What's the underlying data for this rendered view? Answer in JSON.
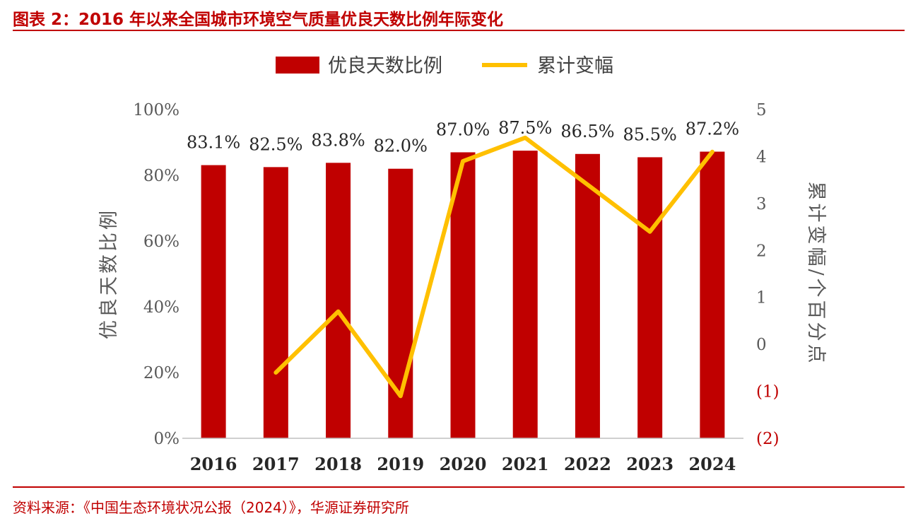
{
  "figure": {
    "title": "图表 2：2016 年以来全国城市环境空气质量优良天数比例年际变化",
    "source": "资料来源：《中国生态环境状况公报（2024）》，华源证券研究所"
  },
  "chart_data": {
    "type": "bar",
    "categories": [
      "2016",
      "2017",
      "2018",
      "2019",
      "2020",
      "2021",
      "2022",
      "2023",
      "2024"
    ],
    "series": [
      {
        "name": "优良天数比例",
        "type": "bar",
        "axis": "left",
        "color": "#c00000",
        "values": [
          83.1,
          82.5,
          83.8,
          82.0,
          87.0,
          87.5,
          86.5,
          85.5,
          87.2
        ],
        "data_labels": [
          "83.1%",
          "82.5%",
          "83.8%",
          "82.0%",
          "87.0%",
          "87.5%",
          "86.5%",
          "85.5%",
          "87.2%"
        ]
      },
      {
        "name": "累计变幅",
        "type": "line",
        "axis": "right",
        "color": "#ffc000",
        "x": [
          "2017",
          "2018",
          "2019",
          "2020",
          "2021",
          "2022",
          "2023",
          "2024"
        ],
        "values": [
          -0.6,
          0.7,
          -1.1,
          3.9,
          4.4,
          3.4,
          2.4,
          4.1
        ]
      }
    ],
    "y_left": {
      "label": "优良天数比例",
      "ylim": [
        0,
        100
      ],
      "ticks": [
        0,
        20,
        40,
        60,
        80,
        100
      ],
      "tick_labels": [
        "0%",
        "20%",
        "40%",
        "60%",
        "80%",
        "100%"
      ]
    },
    "y_right": {
      "label": "累计变幅/个百分点",
      "ylim": [
        -2,
        5
      ],
      "ticks": [
        -2,
        -1,
        0,
        1,
        2,
        3,
        4,
        5
      ],
      "tick_labels": [
        "(2)",
        "(1)",
        "0",
        "1",
        "2",
        "3",
        "4",
        "5"
      ],
      "negative_color": "#c00000"
    },
    "legend": {
      "position": "top-center"
    },
    "grid": false
  }
}
